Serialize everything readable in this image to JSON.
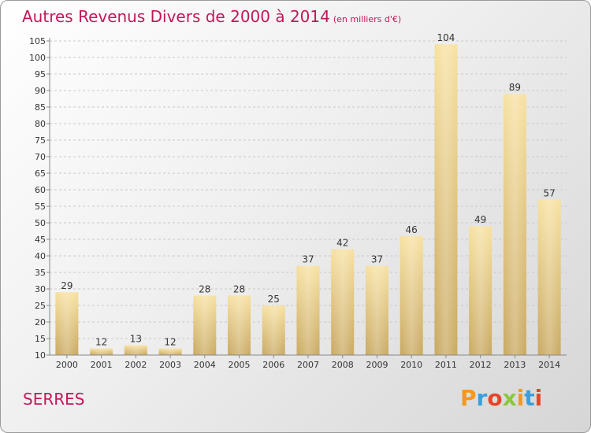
{
  "title": "Autres Revenus Divers de 2000 à 2014",
  "title_unit": "(en milliers d'€)",
  "commune": "SERRES",
  "logo": {
    "letters": [
      "P",
      "r",
      "o",
      "x",
      "i",
      "t",
      "i"
    ],
    "colors": [
      "#f29a1f",
      "#3aa0dc",
      "#e5462a",
      "#8cc63f",
      "#f29a1f",
      "#3aa0dc",
      "#e5462a"
    ]
  },
  "colors": {
    "title": "#c2185b",
    "bar_light": "#f7e0a0",
    "bar_dark": "#c8a860",
    "grid": "#c8c8c8"
  },
  "chart_data": {
    "type": "bar",
    "categories": [
      "2000",
      "2001",
      "2002",
      "2003",
      "2004",
      "2005",
      "2006",
      "2007",
      "2008",
      "2009",
      "2010",
      "2011",
      "2012",
      "2013",
      "2014"
    ],
    "values": [
      29,
      12,
      13,
      12,
      28,
      28,
      25,
      37,
      42,
      37,
      46,
      104,
      49,
      89,
      57
    ],
    "ylim": [
      10,
      105
    ],
    "yticks": [
      10,
      15,
      20,
      25,
      30,
      35,
      40,
      45,
      50,
      55,
      60,
      65,
      70,
      75,
      80,
      85,
      90,
      95,
      100,
      105
    ],
    "grid": true,
    "data_labels": true
  }
}
